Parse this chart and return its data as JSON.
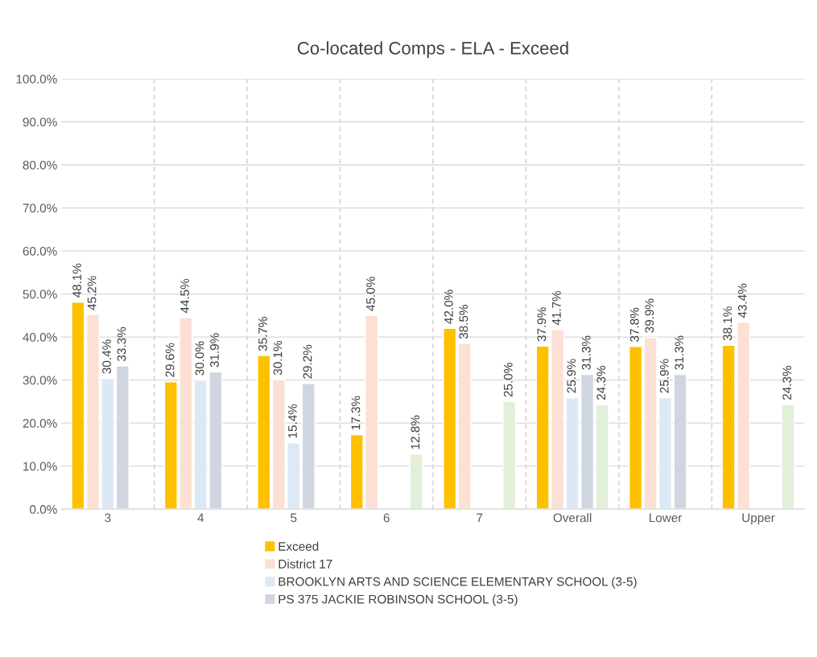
{
  "chart_data": {
    "type": "bar",
    "title": "Co-located Comps - ELA - Exceed",
    "categories": [
      "3",
      "4",
      "5",
      "6",
      "7",
      "Overall",
      "Lower",
      "Upper"
    ],
    "series": [
      {
        "name": "Exceed",
        "color": "#ffc000",
        "values": [
          48.1,
          29.6,
          35.7,
          17.3,
          42.0,
          37.9,
          37.8,
          38.1
        ],
        "value_labels": [
          "48.1%",
          "29.6%",
          "35.7%",
          "17.3%",
          "42.0%",
          "37.9%",
          "37.8%",
          "38.1%"
        ]
      },
      {
        "name": "District 17",
        "color": "#fbe0d3",
        "values": [
          45.2,
          44.5,
          30.1,
          45.0,
          38.5,
          41.7,
          39.9,
          43.4
        ],
        "value_labels": [
          "45.2%",
          "44.5%",
          "30.1%",
          "45.0%",
          "38.5%",
          "41.7%",
          "39.9%",
          "43.4%"
        ]
      },
      {
        "name": "BROOKLYN ARTS AND SCIENCE ELEMENTARY SCHOOL (3-5)",
        "color": "#dde8f5",
        "values": [
          30.4,
          30.0,
          15.4,
          null,
          null,
          25.9,
          25.9,
          null
        ],
        "value_labels": [
          "30.4%",
          "30.0%",
          "15.4%",
          null,
          null,
          "25.9%",
          "25.9%",
          null
        ]
      },
      {
        "name": "PS 375 JACKIE ROBINSON SCHOOL (3-5)",
        "color": "#d0d6e0",
        "values": [
          33.3,
          31.9,
          29.2,
          null,
          null,
          31.3,
          31.3,
          null
        ],
        "value_labels": [
          "33.3%",
          "31.9%",
          "29.2%",
          null,
          null,
          "31.3%",
          "31.3%",
          null
        ]
      },
      {
        "color": "#e2efd9",
        "values": [
          null,
          null,
          null,
          12.8,
          25.0,
          24.3,
          null,
          24.3
        ],
        "value_labels": [
          null,
          null,
          null,
          "12.8%",
          "25.0%",
          "24.3%",
          null,
          "24.3%"
        ]
      }
    ],
    "ylim": [
      0,
      100
    ],
    "yticks": [
      {
        "value": 0,
        "label": "0.0%"
      },
      {
        "value": 10,
        "label": "10.0%"
      },
      {
        "value": 20,
        "label": "20.0%"
      },
      {
        "value": 30,
        "label": "30.0%"
      },
      {
        "value": 40,
        "label": "40.0%"
      },
      {
        "value": 50,
        "label": "50.0%"
      },
      {
        "value": 60,
        "label": "60.0%"
      },
      {
        "value": 70,
        "label": "70.0%"
      },
      {
        "value": 80,
        "label": "80.0%"
      },
      {
        "value": 90,
        "label": "90.0%"
      },
      {
        "value": 100,
        "label": "100.0%"
      }
    ],
    "grid": true,
    "legend": "bottom"
  }
}
